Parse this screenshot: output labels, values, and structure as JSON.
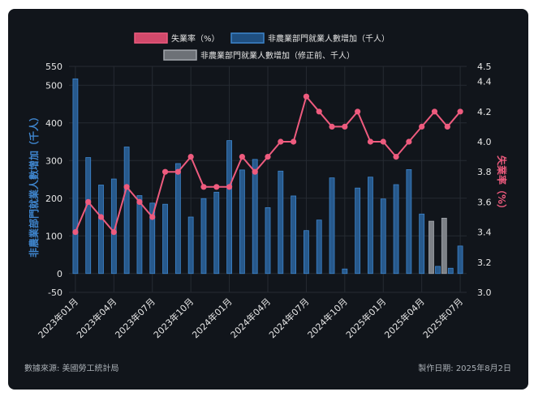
{
  "chart_data": {
    "type": "bar+line",
    "categories": [
      "2023年01月",
      "2023年02月",
      "2023年03月",
      "2023年04月",
      "2023年05月",
      "2023年06月",
      "2023年07月",
      "2023年08月",
      "2023年09月",
      "2023年10月",
      "2023年11月",
      "2023年12月",
      "2024年01月",
      "2024年02月",
      "2024年03月",
      "2024年04月",
      "2024年05月",
      "2024年06月",
      "2024年07月",
      "2024年08月",
      "2024年09月",
      "2024年10月",
      "2024年11月",
      "2024年12月",
      "2025年01月",
      "2025年02月",
      "2025年03月",
      "2025年04月",
      "2025年05月",
      "2025年06月",
      "2025年07月"
    ],
    "x_tick_labels": [
      "2023年01月",
      "2023年04月",
      "2023年07月",
      "2023年10月",
      "2024年01月",
      "2024年04月",
      "2024年07月",
      "2024年10月",
      "2025年01月",
      "2025年04月",
      "2025年07月"
    ],
    "series": [
      {
        "name": "非農業部門就業人數增加（千人）",
        "type": "bar",
        "axis": "left",
        "color": "#2f6fad",
        "values": [
          517,
          308,
          235,
          251,
          336,
          207,
          187,
          184,
          292,
          150,
          199,
          216,
          353,
          275,
          303,
          175,
          272,
          206,
          114,
          142,
          254,
          12,
          227,
          256,
          198,
          236,
          276,
          158,
          19,
          14,
          73
        ]
      },
      {
        "name": "非農業部門就業人數增加（修正前、千人）",
        "type": "bar",
        "axis": "left",
        "color": "#8a8f96",
        "values": [
          null,
          null,
          null,
          null,
          null,
          null,
          null,
          null,
          null,
          null,
          null,
          null,
          null,
          null,
          null,
          null,
          null,
          null,
          null,
          null,
          null,
          null,
          null,
          null,
          null,
          null,
          null,
          null,
          139,
          147,
          null
        ]
      },
      {
        "name": "失業率（%）",
        "type": "line",
        "axis": "right",
        "color": "#ee5b7e",
        "values": [
          3.4,
          3.6,
          3.5,
          3.4,
          3.7,
          3.6,
          3.5,
          3.8,
          3.8,
          3.9,
          3.7,
          3.7,
          3.7,
          3.9,
          3.8,
          3.9,
          4.0,
          4.0,
          4.3,
          4.2,
          4.1,
          4.1,
          4.2,
          4.0,
          4.0,
          3.9,
          4.0,
          4.1,
          4.2,
          4.1,
          4.2
        ]
      }
    ],
    "y_left": {
      "label": "非農業部門就業人數增加（千人）",
      "ylim": [
        -50,
        550
      ],
      "ticks": [
        -50,
        0,
        100,
        200,
        300,
        400,
        500,
        550
      ]
    },
    "y_right": {
      "label": "失業率（%）",
      "ylim": [
        3.0,
        4.5
      ],
      "ticks": [
        3.0,
        3.2,
        3.4,
        3.6,
        3.8,
        4.0,
        4.2,
        4.4,
        4.5
      ]
    },
    "legend": [
      {
        "label": "失業率（%）",
        "color": "#ee5b7e"
      },
      {
        "label": "非農業部門就業人數增加（千人）",
        "color": "#2f6fad"
      },
      {
        "label": "非農業部門就業人數增加（修正前、千人）",
        "color": "#8a8f96"
      }
    ]
  },
  "footer": {
    "source": "數據來源: 美國勞工統計局",
    "date": "製作日期: 2025年8月2日"
  }
}
